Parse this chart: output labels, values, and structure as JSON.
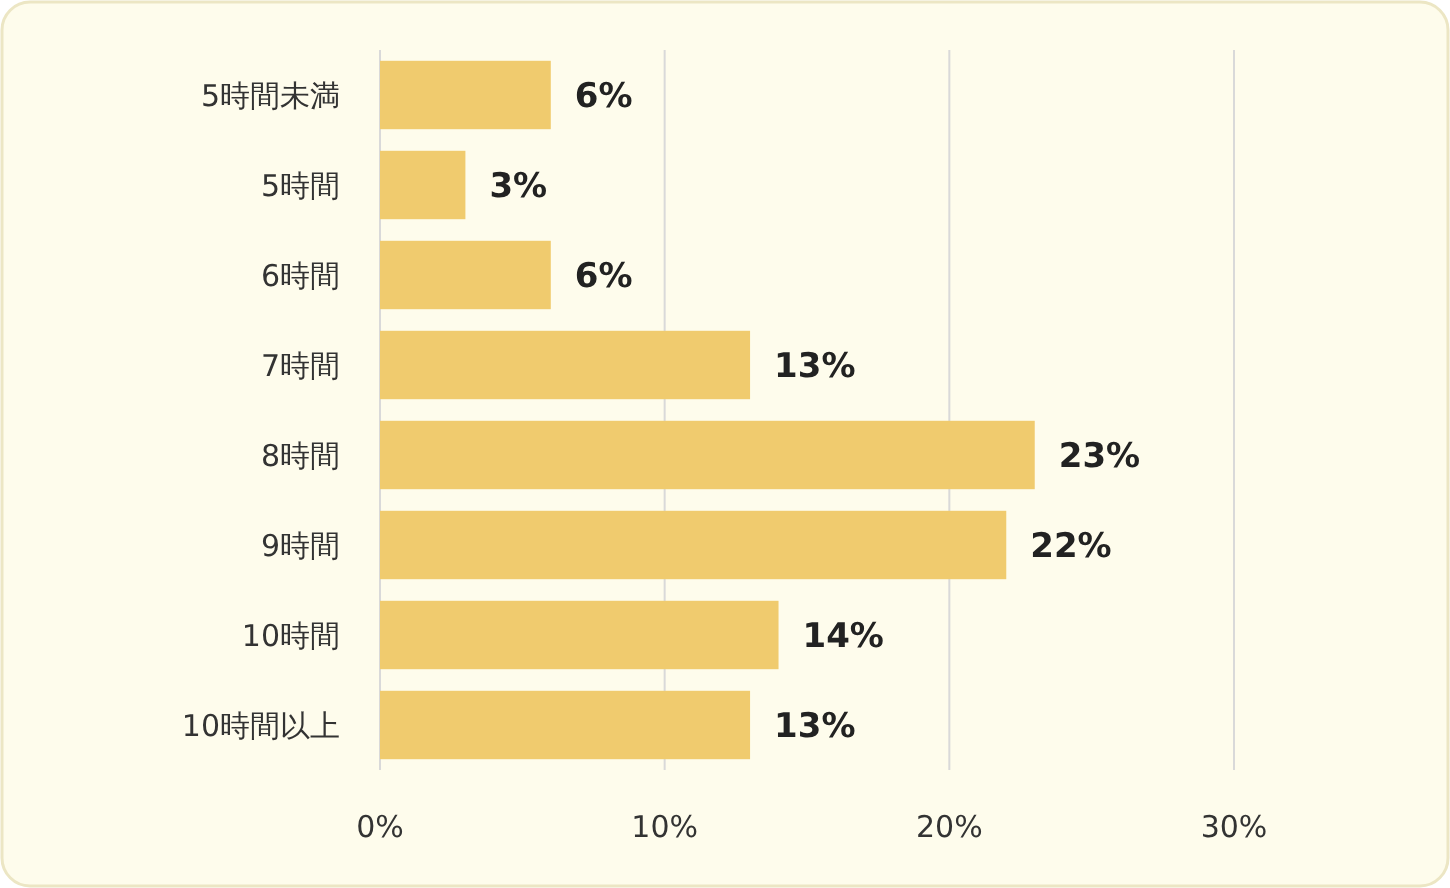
{
  "chart_data": {
    "type": "bar",
    "orientation": "horizontal",
    "categories": [
      "5時間未満",
      "5時間",
      "6時間",
      "7時間",
      "8時間",
      "9時間",
      "10時間",
      "10時間以上"
    ],
    "values": [
      6,
      3,
      6,
      13,
      23,
      22,
      14,
      13
    ],
    "color": "#f0cb6e",
    "xlim": [
      0,
      30
    ],
    "xticks": [
      {
        "value": 0,
        "label": "0%"
      },
      {
        "value": 10,
        "label": "10%"
      },
      {
        "value": 20,
        "label": "20%"
      },
      {
        "value": 30,
        "label": "30%"
      }
    ],
    "grid": "x",
    "value_labels": [
      "6%",
      "3%",
      "6%",
      "13%",
      "23%",
      "22%",
      "14%",
      "13%"
    ]
  }
}
